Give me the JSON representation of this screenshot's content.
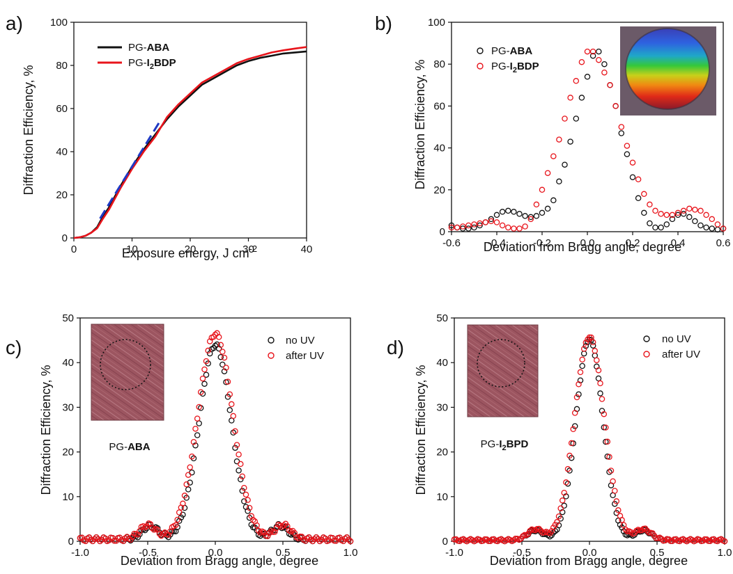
{
  "colors": {
    "black": "#111111",
    "red": "#e8141b",
    "fit": "#1f39c4"
  },
  "chart_data": [
    {
      "panel_label": "a)",
      "type": "line",
      "xlabel": "Exposure energy, J cm",
      "xlabel_sup": "-2",
      "ylabel": "Diffraction Efficiency, %",
      "xlim": [
        0,
        40
      ],
      "ylim": [
        0,
        100
      ],
      "xticks": [
        "0",
        "10",
        "20",
        "30",
        "40"
      ],
      "yticks": [
        "0",
        "20",
        "40",
        "60",
        "80",
        "100"
      ],
      "legend": "top-left",
      "series": [
        {
          "name_pre": "PG-",
          "name_bold": "ABA",
          "name_sub": "",
          "name_bold2": "",
          "color": "#111111",
          "x": [
            0,
            1,
            2,
            3,
            4,
            5,
            6,
            8,
            10,
            12,
            14,
            16,
            18,
            20,
            22,
            24,
            26,
            28,
            30,
            32,
            34,
            36,
            38,
            40
          ],
          "y": [
            0,
            0.3,
            1,
            2.5,
            5,
            10,
            14,
            24,
            33,
            41,
            48,
            55,
            61,
            66,
            71,
            74,
            77,
            80,
            82,
            83.5,
            84.5,
            85.5,
            86,
            86.5
          ]
        },
        {
          "name_pre": "PG-",
          "name_bold": "I",
          "name_sub": "2",
          "name_bold2": "BDP",
          "color": "#e8141b",
          "x": [
            0,
            1,
            2,
            3,
            4,
            5,
            6,
            8,
            10,
            12,
            14,
            16,
            18,
            20,
            22,
            24,
            26,
            28,
            30,
            32,
            34,
            36,
            38,
            40
          ],
          "y": [
            0,
            0.3,
            1,
            2.5,
            4.5,
            9,
            13,
            23,
            32,
            40,
            47,
            56,
            62,
            67,
            72,
            75,
            78,
            81,
            83,
            84.5,
            86,
            87,
            87.8,
            88.5
          ]
        }
      ],
      "fit_line": {
        "x": [
          4.5,
          15
        ],
        "y": [
          9,
          55
        ],
        "color": "#1f39c4"
      }
    },
    {
      "panel_label": "b)",
      "type": "scatter",
      "xlabel": "Deviation from Bragg angle, degree",
      "ylabel": "Diffraction Efficiency, %",
      "xlim": [
        -0.6,
        0.6
      ],
      "ylim": [
        0,
        100
      ],
      "xticks": [
        "-0.6",
        "-0.4",
        "-0.2",
        "0.0",
        "0.2",
        "0.4",
        "0.6"
      ],
      "yticks": [
        "0",
        "20",
        "40",
        "60",
        "80",
        "100"
      ],
      "legend": "top-left",
      "inset": "hologram-photo",
      "series": [
        {
          "name_pre": "PG-",
          "name_bold": "ABA",
          "name_sub": "",
          "name_bold2": "",
          "color": "#111111",
          "x": [
            -0.6,
            -0.575,
            -0.55,
            -0.525,
            -0.5,
            -0.475,
            -0.45,
            -0.425,
            -0.4,
            -0.375,
            -0.35,
            -0.325,
            -0.3,
            -0.275,
            -0.25,
            -0.225,
            -0.2,
            -0.175,
            -0.15,
            -0.125,
            -0.1,
            -0.075,
            -0.05,
            -0.025,
            0,
            0.025,
            0.05,
            0.075,
            0.1,
            0.125,
            0.15,
            0.175,
            0.2,
            0.225,
            0.25,
            0.275,
            0.3,
            0.325,
            0.35,
            0.375,
            0.4,
            0.425,
            0.45,
            0.475,
            0.5,
            0.525,
            0.55,
            0.575,
            0.6
          ],
          "y": [
            3,
            2,
            1.5,
            1.5,
            2,
            3,
            4.5,
            6,
            8,
            9.5,
            10,
            9.5,
            8.5,
            7.5,
            7,
            7.5,
            9,
            11,
            15,
            24,
            32,
            43,
            54,
            64,
            74,
            84,
            86,
            80,
            70,
            60,
            47,
            37,
            26,
            16,
            9,
            4,
            2,
            2,
            3.5,
            6,
            8,
            8.5,
            7,
            5,
            3,
            2,
            1.5,
            1,
            1.5
          ]
        },
        {
          "name_pre": "PG-",
          "name_bold": "I",
          "name_sub": "2",
          "name_bold2": "BDP",
          "color": "#e8141b",
          "x": [
            -0.6,
            -0.575,
            -0.55,
            -0.525,
            -0.5,
            -0.475,
            -0.45,
            -0.425,
            -0.4,
            -0.375,
            -0.35,
            -0.325,
            -0.3,
            -0.275,
            -0.25,
            -0.225,
            -0.2,
            -0.175,
            -0.15,
            -0.125,
            -0.1,
            -0.075,
            -0.05,
            -0.025,
            0,
            0.025,
            0.05,
            0.075,
            0.1,
            0.125,
            0.15,
            0.175,
            0.2,
            0.225,
            0.25,
            0.275,
            0.3,
            0.325,
            0.35,
            0.375,
            0.4,
            0.425,
            0.45,
            0.475,
            0.5,
            0.525,
            0.55,
            0.575,
            0.6
          ],
          "y": [
            2,
            2,
            2.5,
            3,
            3.5,
            4,
            4.5,
            5,
            4.5,
            3,
            2,
            1.5,
            1.5,
            2.5,
            6,
            13,
            20,
            28,
            36,
            44,
            54,
            64,
            72,
            81,
            86,
            86,
            82,
            76,
            70,
            60,
            50,
            41,
            33,
            25,
            18,
            13,
            10,
            8.5,
            8,
            8,
            9,
            10,
            11,
            10.5,
            10,
            8,
            6,
            3.5,
            1.5
          ]
        }
      ]
    },
    {
      "panel_label": "c)",
      "type": "scatter",
      "xlabel": "Deviation from Bragg angle, degree",
      "ylabel": "Diffraction Efficiency, %",
      "xlim": [
        -1,
        1
      ],
      "ylim": [
        0,
        50
      ],
      "xticks": [
        "-1.0",
        "-0.5",
        "0.0",
        "0.5",
        "1.0"
      ],
      "yticks": [
        "0",
        "10",
        "20",
        "30",
        "40",
        "50"
      ],
      "legend": "top-right",
      "inset": "film-photo",
      "inset_caption": {
        "pre": "PG-",
        "bold": "ABA",
        "sub": "",
        "bold2": ""
      },
      "series": [
        {
          "name": "no UV",
          "color": "#111111",
          "peak": 43.5,
          "sigma": 0.12,
          "side_amp": 3.0,
          "side_pos": 0.48,
          "noise": 0.9
        },
        {
          "name": "after UV",
          "color": "#e8141b",
          "peak": 46,
          "sigma": 0.13,
          "side_amp": 3.2,
          "side_pos": 0.5,
          "noise": 0.9
        }
      ]
    },
    {
      "panel_label": "d)",
      "type": "scatter",
      "xlabel": "Deviation from Bragg angle, degree",
      "ylabel": "Diffraction Efficiency, %",
      "xlim": [
        -1,
        1
      ],
      "ylim": [
        0,
        50
      ],
      "xticks": [
        "-1.0",
        "-0.5",
        "0.0",
        "0.5",
        "1.0"
      ],
      "yticks": [
        "0",
        "10",
        "20",
        "30",
        "40",
        "50"
      ],
      "legend": "top-right",
      "inset": "film-photo",
      "inset_caption": {
        "pre": "PG-",
        "bold": "I",
        "sub": "2",
        "bold2": "BPD"
      },
      "series": [
        {
          "name": "no UV",
          "color": "#111111",
          "peak": 45,
          "sigma": 0.1,
          "side_amp": 2.2,
          "side_pos": 0.4,
          "noise": 0.5
        },
        {
          "name": "after UV",
          "color": "#e8141b",
          "peak": 45.5,
          "sigma": 0.11,
          "side_amp": 2.4,
          "side_pos": 0.4,
          "noise": 0.5
        }
      ]
    }
  ]
}
